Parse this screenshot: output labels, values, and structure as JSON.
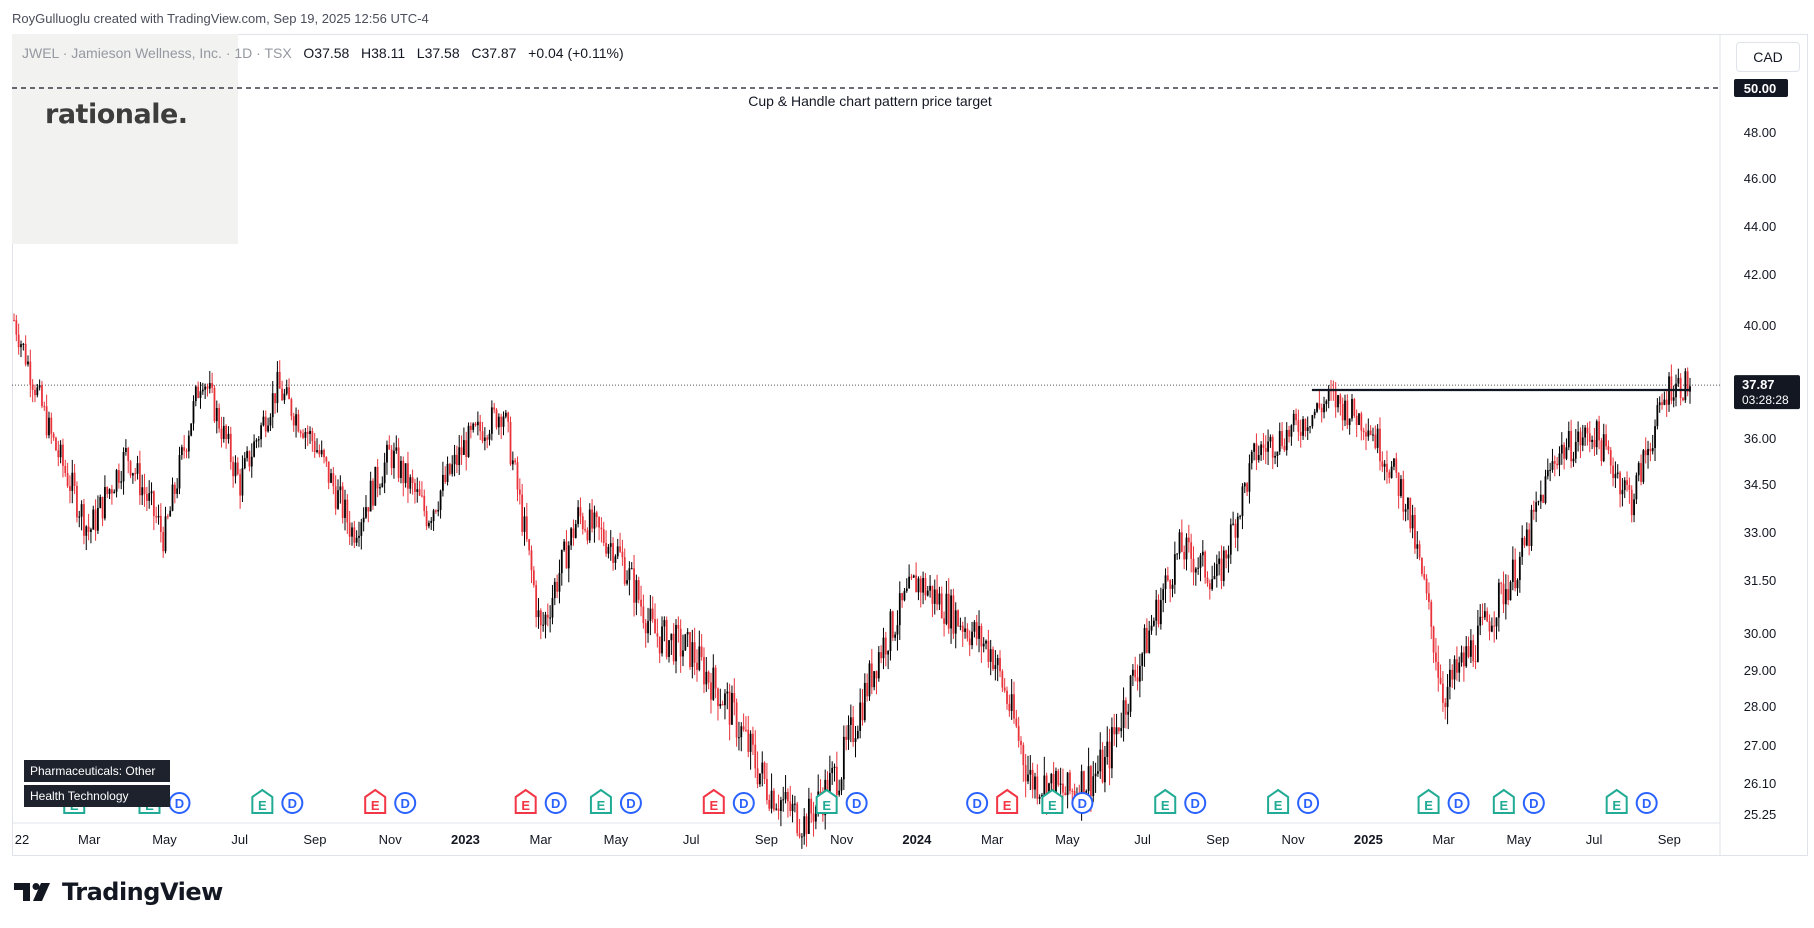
{
  "attribution": "RoyGulluoglu created with TradingView.com, Sep 19, 2025 12:56 UTC-4",
  "watermark": "rationale.",
  "legend": {
    "symbol": "JWEL · Jamieson Wellness, Inc. · 1D · TSX",
    "open_label": "O",
    "open": "37.58",
    "high_label": "H",
    "high": "38.11",
    "low_label": "L",
    "low": "37.58",
    "close_label": "C",
    "close": "37.87",
    "change": "+0.04 (+0.11%)"
  },
  "currency": "CAD",
  "brand": "TradingView",
  "sector_tags": [
    "Pharmaceuticals: Other",
    "Health Technology"
  ],
  "colors": {
    "up": "#000000",
    "down": "#e8333b",
    "earnings": "#22ab94",
    "dividend": "#2962ff",
    "earnings_red": "#f23645"
  },
  "chart_data": {
    "type": "candlestick",
    "y_axis_ticks": [
      "50.00",
      "48.00",
      "46.00",
      "44.00",
      "42.00",
      "40.00",
      "36.00",
      "34.50",
      "33.00",
      "31.50",
      "30.00",
      "29.00",
      "28.00",
      "27.00",
      "26.10",
      "25.25"
    ],
    "y_range": [
      25.25,
      50.0
    ],
    "x_axis_ticks": [
      "22",
      "Mar",
      "May",
      "Jul",
      "Sep",
      "Nov",
      "2023",
      "Mar",
      "May",
      "Jul",
      "Sep",
      "Nov",
      "2024",
      "Mar",
      "May",
      "Jul",
      "Sep",
      "Nov",
      "2025",
      "Mar",
      "May",
      "Jul",
      "Sep"
    ],
    "x_range": [
      "2022-01",
      "2025-09"
    ],
    "last_price": "37.87",
    "countdown": "03:28:28",
    "target_line": {
      "price": "50.00",
      "label": "Cup & Handle chart pattern price target",
      "style": "dashed"
    },
    "resistance_line": {
      "price": 37.7,
      "from": "2024-11",
      "to": "2025-09"
    },
    "current_price_line": {
      "price": 37.87,
      "style": "dotted"
    },
    "price_path": [
      [
        "2022-01",
        40.2
      ],
      [
        "2022-02",
        36.0
      ],
      [
        "2022-03",
        33.0
      ],
      [
        "2022-04",
        35.5
      ],
      [
        "2022-05",
        32.8
      ],
      [
        "2022-06",
        38.3
      ],
      [
        "2022-07",
        34.5
      ],
      [
        "2022-08",
        37.8
      ],
      [
        "2022-09",
        35.8
      ],
      [
        "2022-10",
        33.0
      ],
      [
        "2022-11",
        35.5
      ],
      [
        "2022-12",
        33.5
      ],
      [
        "2023-01",
        35.8
      ],
      [
        "2023-02",
        37.0
      ],
      [
        "2023-03",
        30.0
      ],
      [
        "2023-04",
        33.5
      ],
      [
        "2023-05",
        32.5
      ],
      [
        "2023-06",
        30.0
      ],
      [
        "2023-07",
        29.5
      ],
      [
        "2023-08",
        28.0
      ],
      [
        "2023-09",
        26.0
      ],
      [
        "2023-10",
        25.0
      ],
      [
        "2023-11",
        26.5
      ],
      [
        "2023-12",
        29.5
      ],
      [
        "2024-01",
        31.5
      ],
      [
        "2024-02",
        30.5
      ],
      [
        "2024-03",
        29.5
      ],
      [
        "2024-04",
        26.2
      ],
      [
        "2024-05",
        25.8
      ],
      [
        "2024-06",
        26.5
      ],
      [
        "2024-07",
        29.5
      ],
      [
        "2024-08",
        32.5
      ],
      [
        "2024-09",
        31.5
      ],
      [
        "2024-10",
        35.5
      ],
      [
        "2024-11",
        36.3
      ],
      [
        "2024-12",
        37.4
      ],
      [
        "2025-01",
        36.5
      ],
      [
        "2025-02",
        34.0
      ],
      [
        "2025-03",
        28.3
      ],
      [
        "2025-04",
        30.0
      ],
      [
        "2025-05",
        32.0
      ],
      [
        "2025-06",
        35.5
      ],
      [
        "2025-07",
        36.2
      ],
      [
        "2025-08",
        34.0
      ],
      [
        "2025-09",
        37.87
      ]
    ],
    "event_markers": [
      {
        "type": "E",
        "date": "2022-03"
      },
      {
        "type": "E",
        "date": "2022-05"
      },
      {
        "type": "D",
        "date": "2022-05"
      },
      {
        "type": "E",
        "date": "2022-08"
      },
      {
        "type": "D",
        "date": "2022-08"
      },
      {
        "type": "E",
        "date": "2022-11",
        "color": "red"
      },
      {
        "type": "D",
        "date": "2022-11"
      },
      {
        "type": "E",
        "date": "2023-03",
        "color": "red"
      },
      {
        "type": "D",
        "date": "2023-03"
      },
      {
        "type": "E",
        "date": "2023-05"
      },
      {
        "type": "D",
        "date": "2023-05"
      },
      {
        "type": "E",
        "date": "2023-08",
        "color": "red"
      },
      {
        "type": "D",
        "date": "2023-08"
      },
      {
        "type": "E",
        "date": "2023-11"
      },
      {
        "type": "D",
        "date": "2023-11"
      },
      {
        "type": "D",
        "date": "2024-03"
      },
      {
        "type": "E",
        "date": "2024-03",
        "color": "red"
      },
      {
        "type": "E",
        "date": "2024-05"
      },
      {
        "type": "D",
        "date": "2024-05"
      },
      {
        "type": "E",
        "date": "2024-08"
      },
      {
        "type": "D",
        "date": "2024-08"
      },
      {
        "type": "E",
        "date": "2024-11"
      },
      {
        "type": "D",
        "date": "2024-11"
      },
      {
        "type": "E",
        "date": "2025-03"
      },
      {
        "type": "D",
        "date": "2025-03"
      },
      {
        "type": "E",
        "date": "2025-05"
      },
      {
        "type": "D",
        "date": "2025-05"
      },
      {
        "type": "E",
        "date": "2025-08"
      },
      {
        "type": "D",
        "date": "2025-08"
      }
    ],
    "grid": false
  }
}
